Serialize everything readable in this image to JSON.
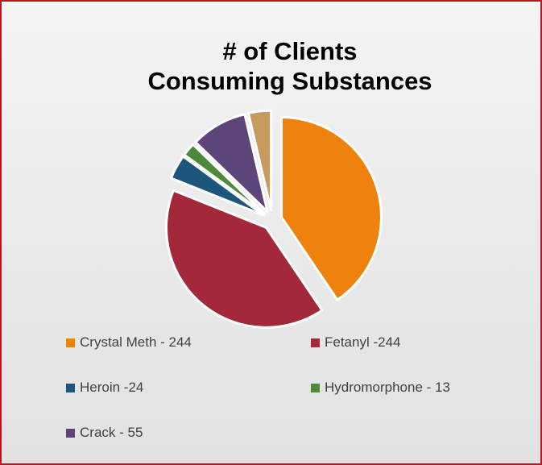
{
  "chart_data": {
    "type": "pie",
    "title_line1": "# of Clients",
    "title_line2": "Consuming Substances",
    "slices": [
      {
        "legend": "Crystal Meth -  244",
        "value": 244,
        "color": "#ef820c"
      },
      {
        "legend": "Fetanyl -244",
        "value": 244,
        "color": "#a3283a"
      },
      {
        "legend": "Heroin -24",
        "value": 24,
        "color": "#1d567c"
      },
      {
        "legend": "Hydromorphone - 13",
        "value": 13,
        "color": "#4c8a3a"
      },
      {
        "legend": "Crack - 55",
        "value": 55,
        "color": "#5e4579"
      },
      {
        "legend": "",
        "value": 22,
        "color": "#c79b5f"
      }
    ],
    "exploded": true,
    "legend_position": "bottom"
  }
}
